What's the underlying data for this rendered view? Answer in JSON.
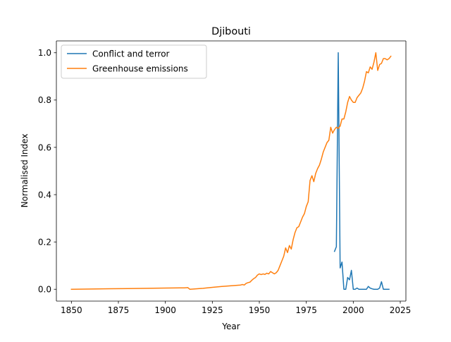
{
  "chart_data": {
    "type": "line",
    "title": "Djibouti",
    "xlabel": "Year",
    "ylabel": "Normalised Index",
    "xlim": [
      1842,
      2028
    ],
    "ylim": [
      -0.05,
      1.05
    ],
    "x_ticks": [
      1850,
      1875,
      1900,
      1925,
      1950,
      1975,
      2000,
      2025
    ],
    "y_ticks": [
      0.0,
      0.2,
      0.4,
      0.6,
      0.8,
      1.0
    ],
    "x_tick_labels": [
      "1850",
      "1875",
      "1900",
      "1925",
      "1950",
      "1975",
      "2000",
      "2025"
    ],
    "y_tick_labels": [
      "0.0",
      "0.2",
      "0.4",
      "0.6",
      "0.8",
      "1.0"
    ],
    "grid": false,
    "legend_position": "upper-left",
    "series": [
      {
        "name": "Conflict and terror",
        "color": "#1f77b4",
        "x": [
          1990,
          1991,
          1992,
          1993,
          1994,
          1995,
          1996,
          1997,
          1998,
          1999,
          2000,
          2001,
          2002,
          2003,
          2004,
          2005,
          2006,
          2007,
          2008,
          2009,
          2010,
          2011,
          2012,
          2013,
          2014,
          2015,
          2016,
          2017,
          2018,
          2019
        ],
        "y": [
          0.16,
          0.18,
          1.0,
          0.09,
          0.115,
          0.0,
          0.0,
          0.05,
          0.04,
          0.08,
          0.0,
          0.0,
          0.005,
          0.0,
          0.0,
          0.0,
          0.0,
          0.0,
          0.012,
          0.005,
          0.002,
          0.0,
          0.0,
          0.0,
          0.005,
          0.032,
          0.0,
          0.0,
          0.0,
          0.0
        ]
      },
      {
        "name": "Greenhouse emissions",
        "color": "#ff7f0e",
        "x": [
          1850,
          1860,
          1870,
          1880,
          1890,
          1900,
          1910,
          1912,
          1913,
          1920,
          1925,
          1930,
          1935,
          1940,
          1941,
          1942,
          1943,
          1944,
          1945,
          1946,
          1947,
          1948,
          1949,
          1950,
          1951,
          1952,
          1953,
          1954,
          1955,
          1956,
          1957,
          1958,
          1959,
          1960,
          1961,
          1962,
          1963,
          1964,
          1965,
          1966,
          1967,
          1968,
          1969,
          1970,
          1971,
          1972,
          1973,
          1974,
          1975,
          1976,
          1977,
          1978,
          1979,
          1980,
          1981,
          1982,
          1983,
          1984,
          1985,
          1986,
          1987,
          1988,
          1989,
          1990,
          1991,
          1992,
          1993,
          1994,
          1995,
          1996,
          1997,
          1998,
          1999,
          2000,
          2001,
          2002,
          2003,
          2004,
          2005,
          2006,
          2007,
          2008,
          2009,
          2010,
          2011,
          2012,
          2013,
          2014,
          2015,
          2016,
          2017,
          2018,
          2019,
          2020
        ],
        "y": [
          0.0,
          0.001,
          0.002,
          0.003,
          0.004,
          0.005,
          0.006,
          0.007,
          0.0,
          0.004,
          0.008,
          0.012,
          0.015,
          0.018,
          0.02,
          0.018,
          0.025,
          0.028,
          0.03,
          0.038,
          0.045,
          0.05,
          0.06,
          0.065,
          0.062,
          0.065,
          0.063,
          0.068,
          0.065,
          0.075,
          0.07,
          0.065,
          0.07,
          0.08,
          0.1,
          0.12,
          0.14,
          0.175,
          0.155,
          0.185,
          0.17,
          0.21,
          0.24,
          0.26,
          0.265,
          0.285,
          0.305,
          0.32,
          0.35,
          0.37,
          0.46,
          0.48,
          0.455,
          0.49,
          0.51,
          0.525,
          0.55,
          0.58,
          0.6,
          0.62,
          0.63,
          0.685,
          0.66,
          0.675,
          0.685,
          0.68,
          0.69,
          0.72,
          0.72,
          0.75,
          0.79,
          0.815,
          0.8,
          0.79,
          0.79,
          0.81,
          0.82,
          0.83,
          0.85,
          0.88,
          0.92,
          0.915,
          0.94,
          0.93,
          0.96,
          1.0,
          0.925,
          0.95,
          0.955,
          0.975,
          0.975,
          0.97,
          0.975,
          0.985
        ]
      }
    ]
  }
}
